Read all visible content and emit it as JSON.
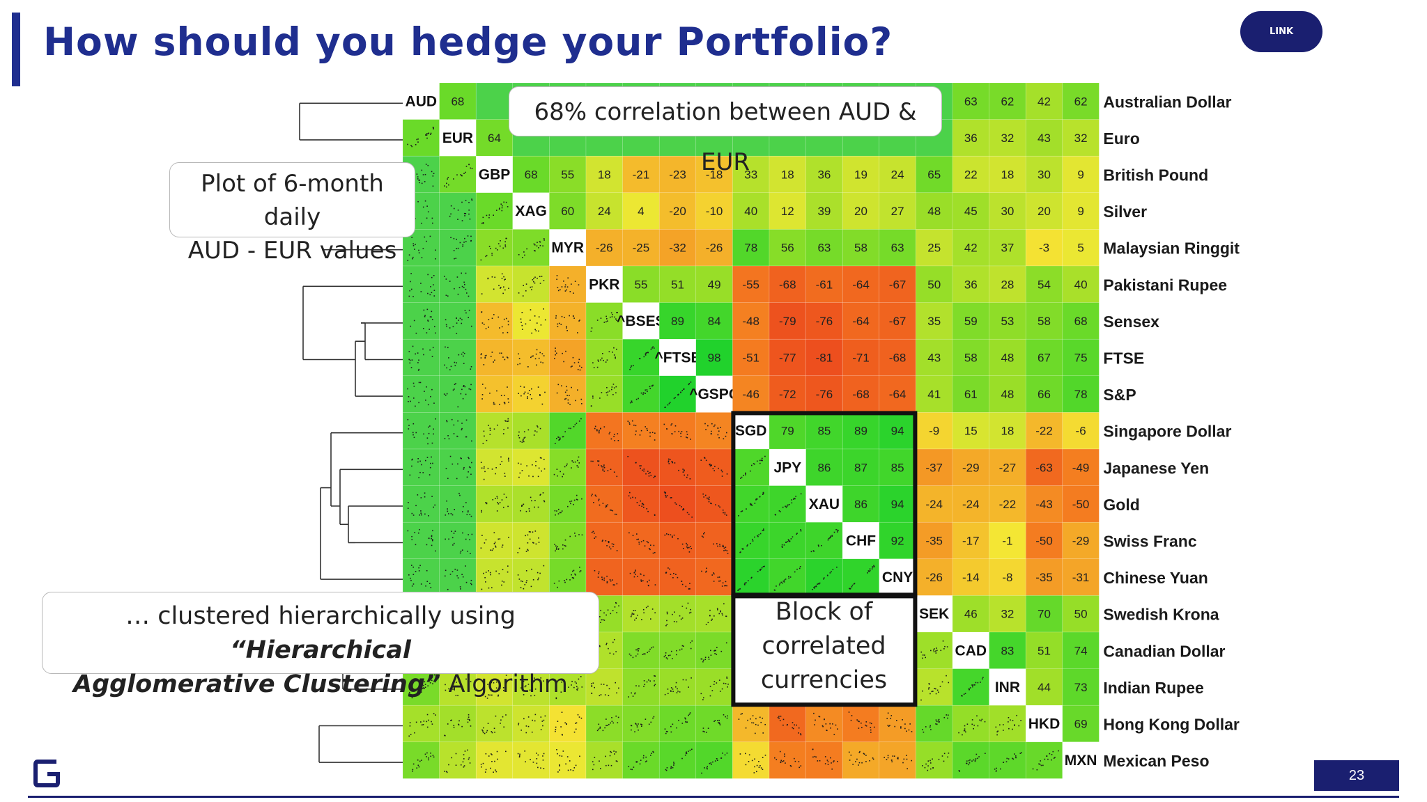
{
  "slide": {
    "title": "How should you hedge your Portfolio?",
    "link_label": "LINK",
    "page_number": "23",
    "brand_color": "#1f2e8f"
  },
  "callouts": {
    "aud_eur": "68% correlation between AUD & EUR",
    "plot_line1": "Plot of 6-month daily",
    "plot_line2": "AUD - EUR values",
    "cluster_text1": "… clustered hierarchically using ",
    "cluster_emph1": "“Hierarchical",
    "cluster_emph2": "Agglomerative Clustering”",
    "cluster_text2": " Algorithm",
    "block_line1": "Block of",
    "block_line2": "correlated",
    "block_line3": "currencies"
  },
  "matrix": {
    "codes": [
      "AUD",
      "EUR",
      "GBP",
      "XAG",
      "MYR",
      "PKR",
      "^BSES",
      "^FTSE",
      "^GSPC",
      "SGD",
      "JPY",
      "XAU",
      "CHF",
      "CNY",
      "SEK",
      "CAD",
      "INR",
      "HKD",
      "MXN"
    ],
    "names": [
      "Australian Dollar",
      "Euro",
      "British Pound",
      "Silver",
      "Malaysian Ringgit",
      "Pakistani Rupee",
      "Sensex",
      "FTSE",
      "S&P",
      "Singapore Dollar",
      "Japanese Yen",
      "Gold",
      "Swiss Franc",
      "Chinese Yuan",
      "Swedish Krona",
      "Canadian Dollar",
      "Indian Rupee",
      "Hong Kong Dollar",
      "Mexican Peso"
    ],
    "rows": [
      [
        68,
        null,
        null,
        null,
        null,
        null,
        null,
        null,
        null,
        null,
        null,
        null,
        null,
        null,
        63,
        62,
        42,
        62
      ],
      [
        64,
        null,
        null,
        null,
        null,
        null,
        null,
        null,
        null,
        null,
        null,
        null,
        null,
        36,
        32,
        43,
        32
      ],
      [
        68,
        55,
        18,
        -21,
        -23,
        -18,
        33,
        18,
        36,
        19,
        24,
        65,
        22,
        18,
        30,
        9
      ],
      [
        60,
        24,
        4,
        -20,
        -10,
        40,
        12,
        39,
        20,
        27,
        48,
        45,
        30,
        20,
        9
      ],
      [
        -26,
        -25,
        -32,
        -26,
        78,
        56,
        63,
        58,
        63,
        25,
        42,
        37,
        -3,
        5
      ],
      [
        55,
        51,
        49,
        -55,
        -68,
        -61,
        -64,
        -67,
        50,
        36,
        28,
        54,
        40
      ],
      [
        89,
        84,
        -48,
        -79,
        -76,
        -64,
        -67,
        35,
        59,
        53,
        58,
        68
      ],
      [
        98,
        -51,
        -77,
        -81,
        -71,
        -68,
        43,
        58,
        48,
        67,
        75
      ],
      [
        -46,
        -72,
        -76,
        -68,
        -64,
        41,
        61,
        48,
        66,
        78
      ],
      [
        79,
        85,
        89,
        94,
        -9,
        15,
        18,
        -22,
        -6
      ],
      [
        86,
        87,
        85,
        -37,
        -29,
        -27,
        -63,
        -49
      ],
      [
        86,
        94,
        -24,
        -24,
        -22,
        -43,
        -50
      ],
      [
        92,
        -35,
        -17,
        -1,
        -50,
        -29
      ],
      [
        -26,
        -14,
        -8,
        -35,
        -31
      ],
      [
        46,
        32,
        70,
        50
      ],
      [
        83,
        51,
        74
      ],
      [
        44,
        73
      ],
      [
        69
      ],
      []
    ]
  }
}
